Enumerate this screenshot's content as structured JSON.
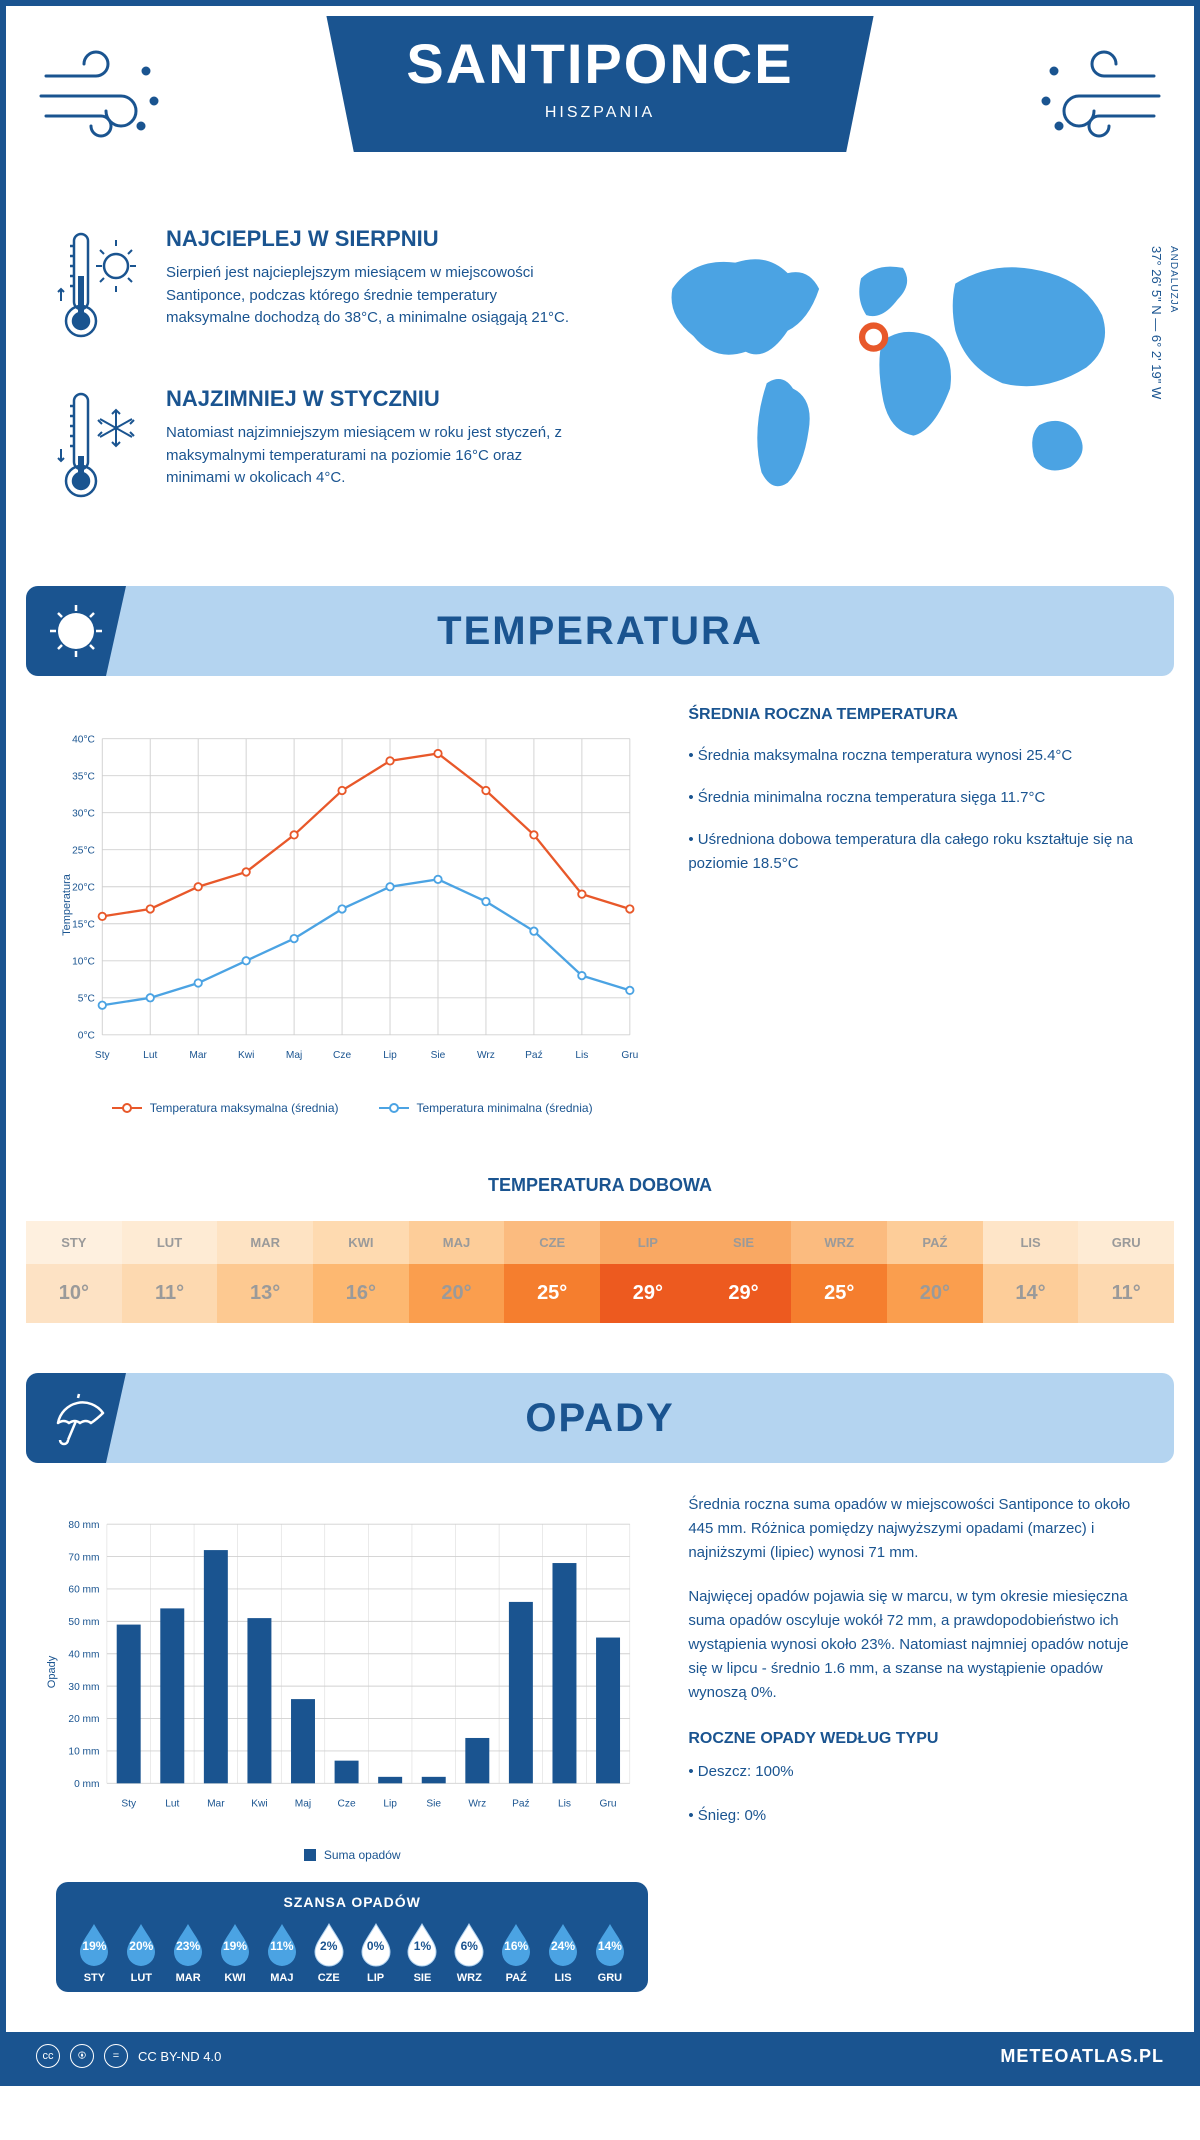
{
  "header": {
    "title": "SANTIPONCE",
    "subtitle": "HISZPANIA"
  },
  "intro": {
    "warmest": {
      "title": "NAJCIEPLEJ W SIERPNIU",
      "text": "Sierpień jest najcieplejszym miesiącem w miejscowości Santiponce, podczas którego średnie temperatury maksymalne dochodzą do 38°C, a minimalne osiągają 21°C."
    },
    "coldest": {
      "title": "NAJZIMNIEJ W STYCZNIU",
      "text": "Natomiast najzimniejszym miesiącem w roku jest styczeń, z maksymalnymi temperaturami na poziomie 16°C oraz minimami w okolicach 4°C."
    },
    "coords": "37° 26' 5\" N — 6° 2' 19\" W",
    "region": "ANDALUZJA"
  },
  "temperature": {
    "section_title": "TEMPERATURA",
    "chart": {
      "type": "line",
      "months": [
        "Sty",
        "Lut",
        "Mar",
        "Kwi",
        "Maj",
        "Cze",
        "Lip",
        "Sie",
        "Wrz",
        "Paź",
        "Lis",
        "Gru"
      ],
      "max_values": [
        16,
        17,
        20,
        22,
        27,
        33,
        37,
        38,
        33,
        27,
        19,
        17
      ],
      "min_values": [
        4,
        5,
        7,
        10,
        13,
        17,
        20,
        21,
        18,
        14,
        8,
        6
      ],
      "max_color": "#e8582a",
      "min_color": "#4ba3e3",
      "y_label": "Temperatura",
      "y_min": 0,
      "y_max": 40,
      "y_step": 5,
      "grid_color": "#d0d0d0",
      "legend_max": "Temperatura maksymalna (średnia)",
      "legend_min": "Temperatura minimalna (średnia)"
    },
    "stats": {
      "title": "ŚREDNIA ROCZNA TEMPERATURA",
      "line1": "• Średnia maksymalna roczna temperatura wynosi 25.4°C",
      "line2": "• Średnia minimalna roczna temperatura sięga 11.7°C",
      "line3": "• Uśredniona dobowa temperatura dla całego roku kształtuje się na poziomie 18.5°C"
    },
    "daily": {
      "title": "TEMPERATURA DOBOWA",
      "months": [
        "STY",
        "LUT",
        "MAR",
        "KWI",
        "MAJ",
        "CZE",
        "LIP",
        "SIE",
        "WRZ",
        "PAŹ",
        "LIS",
        "GRU"
      ],
      "values": [
        "10°",
        "11°",
        "13°",
        "16°",
        "20°",
        "25°",
        "29°",
        "29°",
        "25°",
        "20°",
        "14°",
        "11°"
      ],
      "bg_colors": [
        "#fde2c4",
        "#fdd9b0",
        "#fdc991",
        "#fdb871",
        "#fa9e4e",
        "#f57e2e",
        "#ed5a1f",
        "#ed5a1f",
        "#f57e2e",
        "#fa9e4e",
        "#fdcd99",
        "#fdd9b0"
      ],
      "text_colors": [
        "#9a9a9a",
        "#9a9a9a",
        "#9a9a9a",
        "#9a9a9a",
        "#9a9a9a",
        "#ffffff",
        "#ffffff",
        "#ffffff",
        "#ffffff",
        "#9a9a9a",
        "#9a9a9a",
        "#9a9a9a"
      ],
      "month_bg_colors": [
        "#fef0df",
        "#feebd4",
        "#fee3c3",
        "#fedab0",
        "#fdcd99",
        "#fbbb7f",
        "#f9a863",
        "#f9a863",
        "#fbbb7f",
        "#fdcd99",
        "#fee5c8",
        "#feebd4"
      ]
    }
  },
  "precipitation": {
    "section_title": "OPADY",
    "chart": {
      "type": "bar",
      "months": [
        "Sty",
        "Lut",
        "Mar",
        "Kwi",
        "Maj",
        "Cze",
        "Lip",
        "Sie",
        "Wrz",
        "Paź",
        "Lis",
        "Gru"
      ],
      "values": [
        49,
        54,
        72,
        51,
        26,
        7,
        2,
        2,
        14,
        56,
        68,
        45
      ],
      "bar_color": "#1a5490",
      "y_label": "Opady",
      "y_min": 0,
      "y_max": 80,
      "y_step": 10,
      "y_unit": "mm",
      "grid_color": "#d0d0d0",
      "legend": "Suma opadów"
    },
    "text": {
      "p1": "Średnia roczna suma opadów w miejscowości Santiponce to około 445 mm. Różnica pomiędzy najwyższymi opadami (marzec) i najniższymi (lipiec) wynosi 71 mm.",
      "p2": "Najwięcej opadów pojawia się w marcu, w tym okresie miesięczna suma opadów oscyluje wokół 72 mm, a prawdopodobieństwo ich wystąpienia wynosi około 23%. Natomiast najmniej opadów notuje się w lipcu - średnio 1.6 mm, a szanse na wystąpienie opadów wynoszą 0%.",
      "type_title": "ROCZNE OPADY WEDŁUG TYPU",
      "type1": "• Deszcz: 100%",
      "type2": "• Śnieg: 0%"
    },
    "chance": {
      "title": "SZANSA OPADÓW",
      "months": [
        "STY",
        "LUT",
        "MAR",
        "KWI",
        "MAJ",
        "CZE",
        "LIP",
        "SIE",
        "WRZ",
        "PAŹ",
        "LIS",
        "GRU"
      ],
      "values": [
        "19%",
        "20%",
        "23%",
        "19%",
        "11%",
        "2%",
        "0%",
        "1%",
        "6%",
        "16%",
        "24%",
        "14%"
      ],
      "filled": [
        true,
        true,
        true,
        true,
        true,
        false,
        false,
        false,
        false,
        true,
        true,
        true
      ],
      "fill_color": "#4ba3e3",
      "empty_color": "#ffffff"
    }
  },
  "footer": {
    "license": "CC BY-ND 4.0",
    "site": "METEOATLAS.PL"
  },
  "colors": {
    "primary": "#1a5490",
    "light_blue": "#b4d4f0",
    "accent_blue": "#4ba3e3"
  }
}
